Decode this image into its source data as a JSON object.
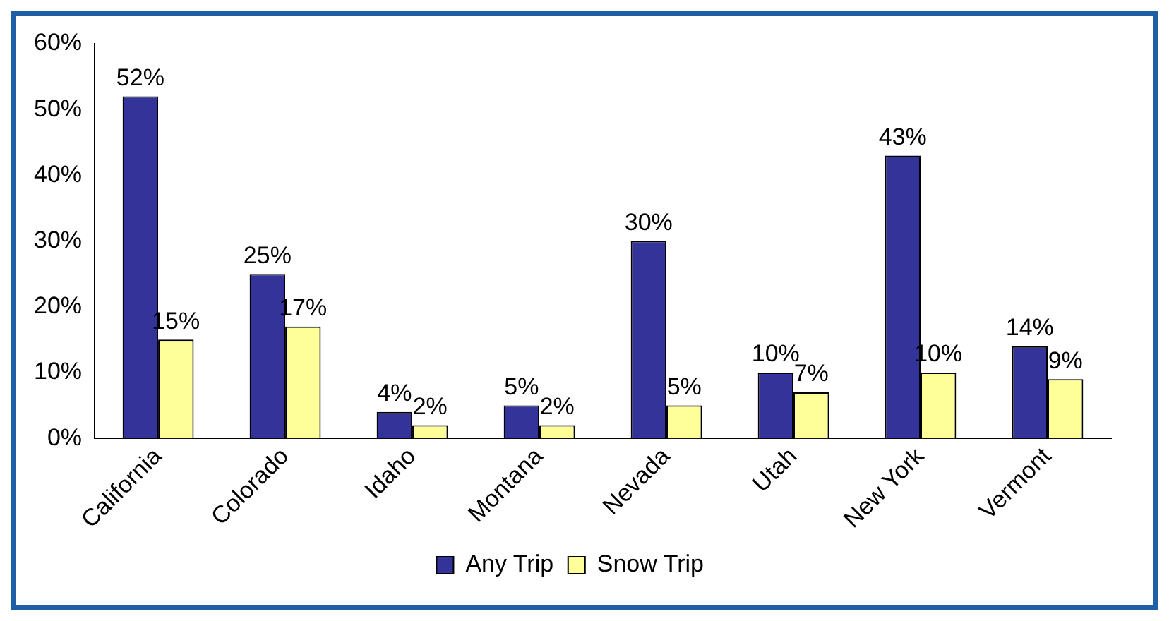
{
  "chart_data": {
    "type": "bar",
    "categories": [
      "California",
      "Colorado",
      "Idaho",
      "Montana",
      "Nevada",
      "Utah",
      "New York",
      "Vermont"
    ],
    "series": [
      {
        "name": "Any Trip",
        "color": "#333399",
        "values": [
          52,
          25,
          4,
          5,
          30,
          10,
          43,
          14
        ],
        "value_labels": [
          "52%",
          "25%",
          "4%",
          "5%",
          "30%",
          "10%",
          "43%",
          "14%"
        ]
      },
      {
        "name": "Snow Trip",
        "color": "#ffff99",
        "values": [
          15,
          17,
          2,
          2,
          5,
          7,
          10,
          9
        ],
        "value_labels": [
          "15%",
          "17%",
          "2%",
          "2%",
          "5%",
          "7%",
          "10%",
          "9%"
        ]
      }
    ],
    "ylim": [
      0,
      60
    ],
    "yticks": [
      {
        "value": 0,
        "label": "0%"
      },
      {
        "value": 10,
        "label": "10%"
      },
      {
        "value": 20,
        "label": "20%"
      },
      {
        "value": 30,
        "label": "30%"
      },
      {
        "value": 40,
        "label": "40%"
      },
      {
        "value": 50,
        "label": "50%"
      },
      {
        "value": 60,
        "label": "60%"
      }
    ],
    "grid": false,
    "legend": "bottom"
  }
}
